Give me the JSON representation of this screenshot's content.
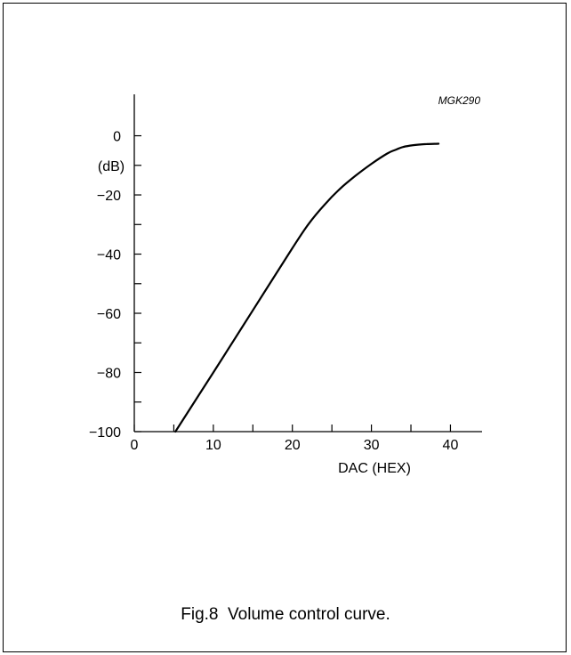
{
  "figure": {
    "code": "MGK290",
    "caption": "Fig.8  Volume control curve."
  },
  "chart_data": {
    "type": "line",
    "title": "",
    "xlabel": "DAC (HEX)",
    "ylabel": "(dB)",
    "xlim": [
      0,
      44
    ],
    "ylim": [
      -100,
      14
    ],
    "x_ticks": [
      0,
      10,
      20,
      30,
      40
    ],
    "x_minor_ticks": [
      5,
      15,
      25,
      35
    ],
    "y_ticks": [
      0,
      -20,
      -40,
      -60,
      -80,
      -100
    ],
    "y_minor_ticks": [
      -10,
      -30,
      -50,
      -70,
      -90
    ],
    "tick_labels": {
      "x": [
        "0",
        "10",
        "20",
        "30",
        "40"
      ],
      "y": [
        "0",
        "−20",
        "−40",
        "−60",
        "−80",
        "−100"
      ]
    },
    "grid": false,
    "series": [
      {
        "values_x": [
          5.2,
          10,
          15,
          20,
          22,
          24,
          26,
          28,
          30,
          32,
          33,
          34,
          35,
          36,
          37,
          38.5
        ],
        "values_y": [
          -100,
          -80,
          -59,
          -38,
          -30,
          -23.5,
          -18,
          -13.5,
          -9.5,
          -6,
          -4.8,
          -3.8,
          -3.3,
          -3,
          -2.8,
          -2.7
        ]
      }
    ]
  }
}
